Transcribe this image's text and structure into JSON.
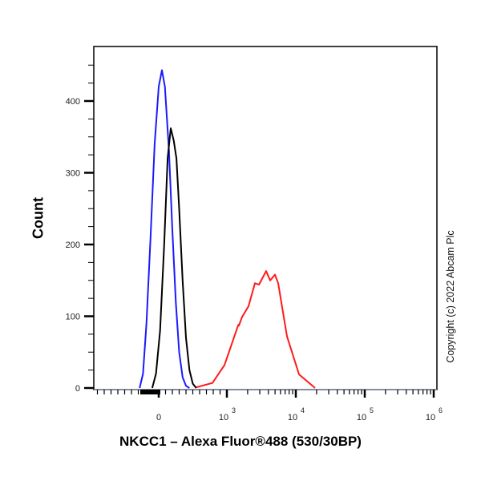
{
  "chart_data": {
    "type": "line",
    "title": "",
    "xlabel": "NKCC1 – Alexa Fluor®488 (530/30BP)",
    "ylabel": "Count",
    "x_scale": "biexponential",
    "xlim": [
      -950,
      1000000
    ],
    "ylim": [
      0,
      474
    ],
    "x_ticks": [
      {
        "value": 0,
        "base": "0",
        "exp": ""
      },
      {
        "value": 1000,
        "base": "10",
        "exp": "3"
      },
      {
        "value": 10000,
        "base": "10",
        "exp": "4"
      },
      {
        "value": 100000,
        "base": "10",
        "exp": "5"
      },
      {
        "value": 1000000,
        "base": "10",
        "exp": "6"
      }
    ],
    "y_ticks": [
      0,
      100,
      200,
      300,
      400
    ],
    "grid": false,
    "series": [
      {
        "color": "#1a1aff",
        "x": [
          -280,
          -230,
          -180,
          -120,
          -60,
          0,
          47,
          90,
          150,
          200,
          250,
          300,
          350,
          400,
          450
        ],
        "y": [
          0,
          20,
          90,
          210,
          340,
          420,
          443,
          420,
          330,
          220,
          120,
          50,
          15,
          3,
          0
        ]
      },
      {
        "color": "#000000",
        "x": [
          -95,
          -40,
          20,
          80,
          130,
          176,
          220,
          260,
          300,
          350,
          400,
          450,
          500,
          550
        ],
        "y": [
          0,
          20,
          80,
          200,
          320,
          362,
          345,
          320,
          250,
          150,
          70,
          25,
          6,
          0
        ]
      },
      {
        "color": "#ff1a1a",
        "x": [
          553,
          788,
          965,
          1468,
          1494,
          1663,
          2060,
          2553,
          2917,
          3712,
          4244,
          4985,
          5544,
          7442,
          11120,
          19000
        ],
        "y": [
          1,
          7,
          32,
          88,
          87,
          99,
          114,
          146,
          144,
          163,
          150,
          158,
          146,
          72,
          19,
          0
        ]
      }
    ]
  },
  "copyright": "Copyright (c) 2022 Abcam Plc"
}
